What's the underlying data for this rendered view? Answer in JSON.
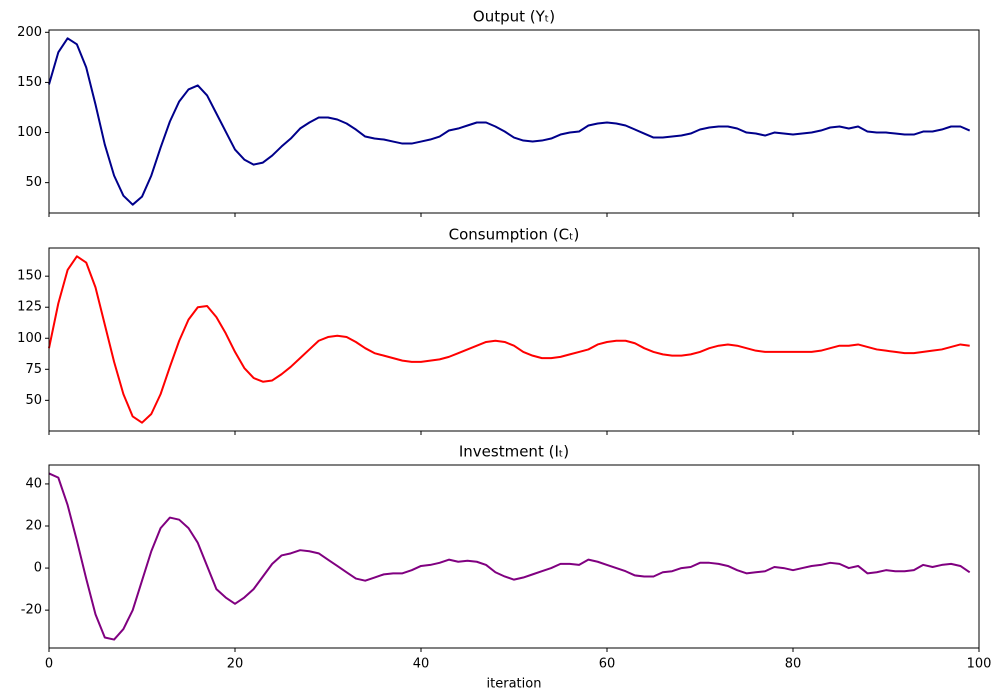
{
  "chart_data": [
    {
      "type": "line",
      "title": "Output (Yₜ)",
      "color": "#00008b",
      "x": [
        0,
        1,
        2,
        3,
        4,
        5,
        6,
        7,
        8,
        9,
        10,
        11,
        12,
        13,
        14,
        15,
        16,
        17,
        18,
        19,
        20,
        21,
        22,
        23,
        24,
        25,
        26,
        27,
        28,
        29,
        30,
        31,
        32,
        33,
        34,
        35,
        36,
        37,
        38,
        39,
        40,
        41,
        42,
        43,
        44,
        45,
        46,
        47,
        48,
        49,
        50,
        51,
        52,
        53,
        54,
        55,
        56,
        57,
        58,
        59,
        60,
        61,
        62,
        63,
        64,
        65,
        66,
        67,
        68,
        69,
        70,
        71,
        72,
        73,
        74,
        75,
        76,
        77,
        78,
        79,
        80,
        81,
        82,
        83,
        84,
        85,
        86,
        87,
        88,
        89,
        90,
        91,
        92,
        93,
        94,
        95,
        96,
        97,
        98,
        99
      ],
      "values": [
        148,
        180,
        194,
        188,
        165,
        128,
        88,
        57,
        37,
        28,
        36,
        57,
        85,
        111,
        131,
        143,
        147,
        137,
        119,
        101,
        83,
        73,
        68,
        70,
        77,
        86,
        94,
        104,
        110,
        115,
        115,
        113,
        109,
        103,
        96,
        94,
        93,
        91,
        89,
        89,
        91,
        93,
        96,
        102,
        104,
        107,
        110,
        110,
        106,
        101,
        95,
        92,
        91,
        92,
        94,
        98,
        100,
        101,
        107,
        109,
        110,
        109,
        107,
        103,
        99,
        95,
        95,
        96,
        97,
        99,
        103,
        105,
        106,
        106,
        104,
        100,
        99,
        97,
        100,
        99,
        98,
        99,
        100,
        102,
        105,
        106,
        104,
        106,
        101,
        100,
        100,
        99,
        98,
        98,
        101,
        101,
        103,
        106,
        106,
        102
      ],
      "xlim": [
        0,
        100
      ],
      "xticks": [
        0,
        20,
        40,
        60,
        80,
        100
      ],
      "ylim": [
        19.7,
        202.3
      ],
      "yticks": [
        50,
        100,
        150,
        200
      ]
    },
    {
      "type": "line",
      "title": "Consumption (Cₜ)",
      "color": "#ff0000",
      "x": [
        0,
        1,
        2,
        3,
        4,
        5,
        6,
        7,
        8,
        9,
        10,
        11,
        12,
        13,
        14,
        15,
        16,
        17,
        18,
        19,
        20,
        21,
        22,
        23,
        24,
        25,
        26,
        27,
        28,
        29,
        30,
        31,
        32,
        33,
        34,
        35,
        36,
        37,
        38,
        39,
        40,
        41,
        42,
        43,
        44,
        45,
        46,
        47,
        48,
        49,
        50,
        51,
        52,
        53,
        54,
        55,
        56,
        57,
        58,
        59,
        60,
        61,
        62,
        63,
        64,
        65,
        66,
        67,
        68,
        69,
        70,
        71,
        72,
        73,
        74,
        75,
        76,
        77,
        78,
        79,
        80,
        81,
        82,
        83,
        84,
        85,
        86,
        87,
        88,
        89,
        90,
        91,
        92,
        93,
        94,
        95,
        96,
        97,
        98,
        99
      ],
      "values": [
        92,
        128,
        155,
        166,
        161,
        141,
        111,
        81,
        55,
        37,
        32,
        39,
        55,
        77,
        98,
        115,
        125,
        126,
        117,
        104,
        89,
        76,
        68,
        65,
        66,
        71,
        77,
        84,
        91,
        98,
        101,
        102,
        101,
        97,
        92,
        88,
        86,
        84,
        82,
        81,
        81,
        82,
        83,
        85,
        88,
        91,
        94,
        97,
        98,
        97,
        94,
        89,
        86,
        84,
        84,
        85,
        87,
        89,
        91,
        95,
        97,
        98,
        98,
        96,
        92,
        89,
        87,
        86,
        86,
        87,
        89,
        92,
        94,
        95,
        94,
        92,
        90,
        89,
        89,
        89,
        89,
        89,
        89,
        90,
        92,
        94,
        94,
        95,
        93,
        91,
        90,
        89,
        88,
        88,
        89,
        90,
        91,
        93,
        95,
        94
      ],
      "xlim": [
        0,
        100
      ],
      "xticks": [
        0,
        20,
        40,
        60,
        80,
        100
      ],
      "ylim": [
        25.3,
        172.7
      ],
      "yticks": [
        50,
        75,
        100,
        125,
        150
      ]
    },
    {
      "type": "line",
      "title": "Investment (Iₜ)",
      "color": "#800080",
      "xlabel": "iteration",
      "x": [
        0,
        1,
        2,
        3,
        4,
        5,
        6,
        7,
        8,
        9,
        10,
        11,
        12,
        13,
        14,
        15,
        16,
        17,
        18,
        19,
        20,
        21,
        22,
        23,
        24,
        25,
        26,
        27,
        28,
        29,
        30,
        31,
        32,
        33,
        34,
        35,
        36,
        37,
        38,
        39,
        40,
        41,
        42,
        43,
        44,
        45,
        46,
        47,
        48,
        49,
        50,
        51,
        52,
        53,
        54,
        55,
        56,
        57,
        58,
        59,
        60,
        61,
        62,
        63,
        64,
        65,
        66,
        67,
        68,
        69,
        70,
        71,
        72,
        73,
        74,
        75,
        76,
        77,
        78,
        79,
        80,
        81,
        82,
        83,
        84,
        85,
        86,
        87,
        88,
        89,
        90,
        91,
        92,
        93,
        94,
        95,
        96,
        97,
        98,
        99
      ],
      "values": [
        45,
        43,
        30,
        13,
        -5,
        -22,
        -33,
        -34,
        -29,
        -20,
        -6,
        8,
        19,
        24,
        23,
        19,
        12,
        1,
        -10,
        -14,
        -17,
        -14,
        -10,
        -4,
        2,
        6,
        7,
        8.5,
        8,
        7,
        4,
        1,
        -2,
        -5,
        -6,
        -4.5,
        -3,
        -2.5,
        -2.5,
        -1,
        1,
        1.5,
        2.5,
        4,
        3,
        3.5,
        3,
        1.5,
        -2,
        -4,
        -5.5,
        -4.5,
        -3,
        -1.5,
        0,
        2,
        2,
        1.5,
        4,
        3,
        1.5,
        0,
        -1.5,
        -3.5,
        -4,
        -4,
        -2,
        -1.5,
        0,
        0.5,
        2.5,
        2.5,
        2,
        1,
        -1,
        -2.5,
        -2,
        -1.5,
        0.5,
        0,
        -1,
        0,
        1,
        1.5,
        2.5,
        2,
        0,
        1,
        -2.5,
        -2,
        -1,
        -1.5,
        -1.5,
        -1,
        1.5,
        0.5,
        1.5,
        2,
        1,
        -2
      ],
      "xlim": [
        0,
        100
      ],
      "xticks": [
        0,
        20,
        40,
        60,
        80,
        100
      ],
      "ylim": [
        -38,
        49
      ],
      "yticks": [
        -20,
        0,
        20,
        40
      ]
    }
  ]
}
